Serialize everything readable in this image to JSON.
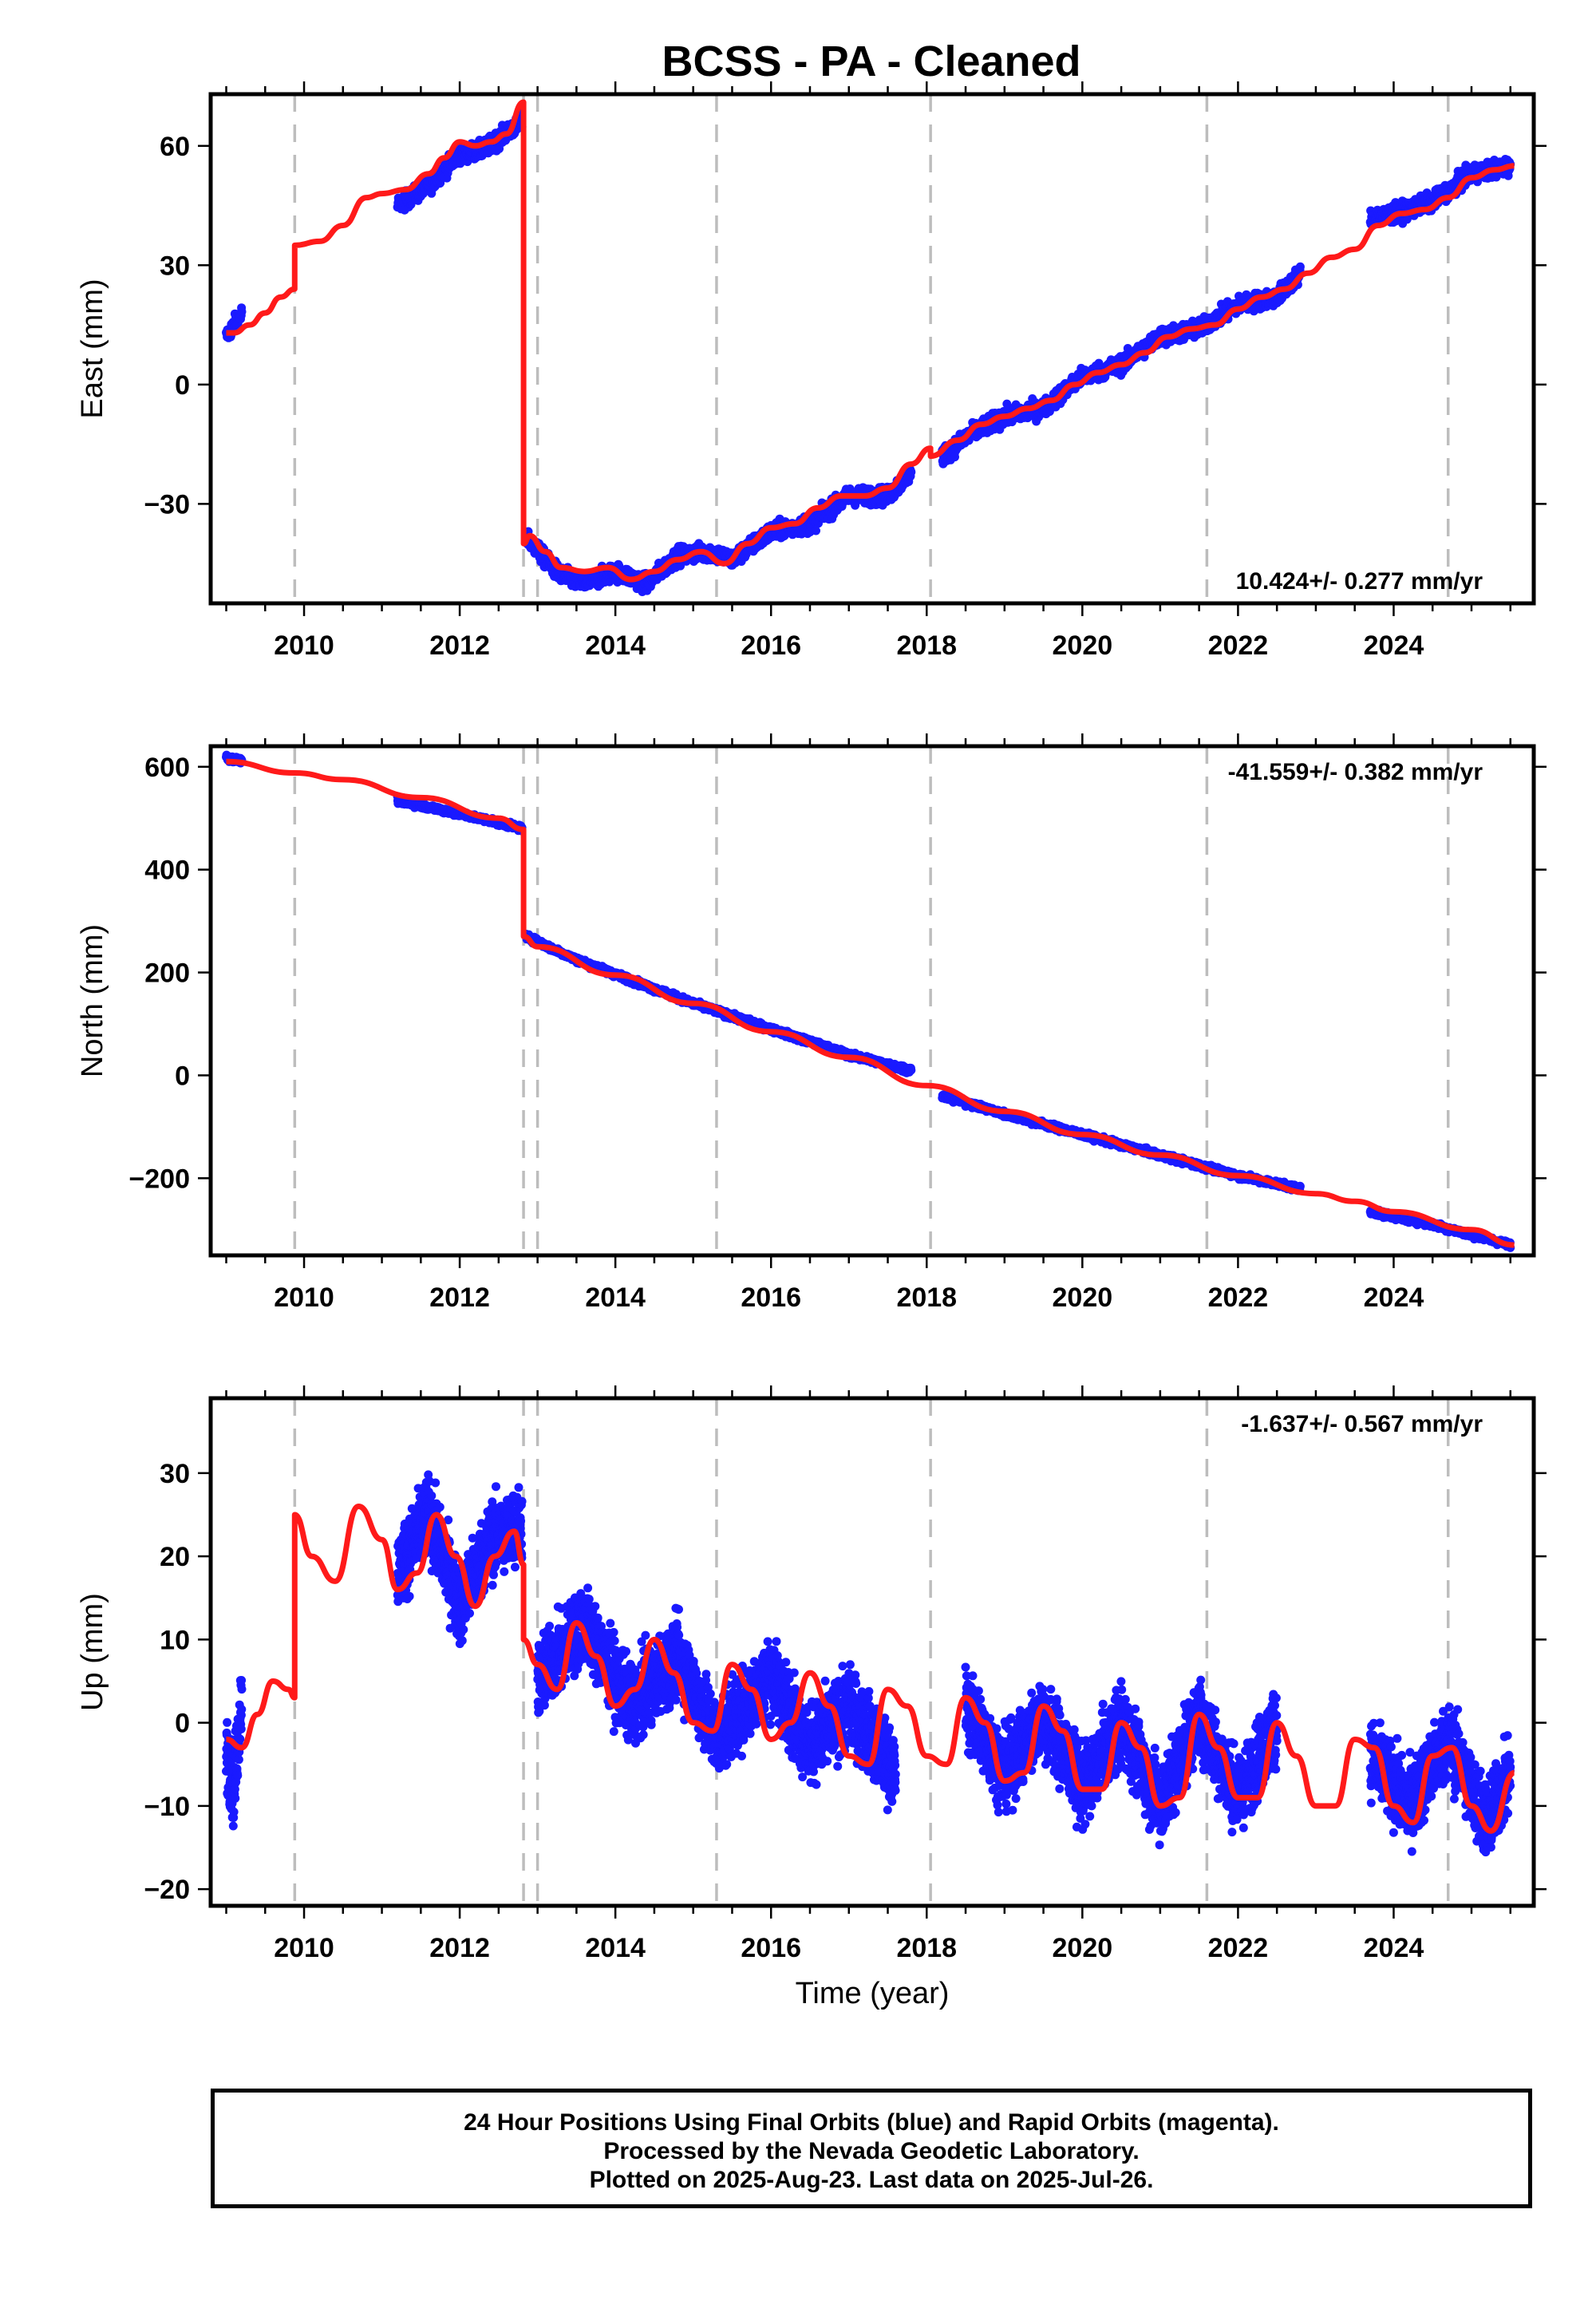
{
  "title": "BCSS  - PA - Cleaned",
  "footer": {
    "line1": "24 Hour Positions Using Final Orbits (blue) and Rapid Orbits (magenta).",
    "line2": "Processed by the Nevada Geodetic Laboratory.",
    "line3": "Plotted on 2025-Aug-23. Last data on 2025-Jul-26."
  },
  "colors": {
    "data_points": "#1a1aff",
    "model_line": "#ff1a1a",
    "event_lines": "#bdbdbd"
  },
  "chart_data": [
    {
      "type": "scatter",
      "ylabel": "East (mm)",
      "xlabel": "",
      "rate_label": "10.424+/- 0.277 mm/yr",
      "xlim": [
        2008.8,
        2025.8
      ],
      "ylim": [
        -55,
        73
      ],
      "xticks": [
        "2010",
        "2012",
        "2014",
        "2016",
        "2018",
        "2020",
        "2022",
        "2024"
      ],
      "yticks": [
        "60",
        "30",
        "0",
        "−30"
      ],
      "event_lines": [
        2009.88,
        2012.82,
        2013.0,
        2015.3,
        2018.05,
        2021.6,
        2024.7
      ],
      "series": [
        {
          "style": "points",
          "segments": [
            {
              "x": [
                2009.0,
                2009.1,
                2009.2
              ],
              "y": [
                12,
                15,
                18
              ]
            },
            {
              "x": [
                2011.2,
                2011.6,
                2012.0,
                2012.3,
                2012.8
              ],
              "y": [
                45,
                50,
                58,
                59,
                66
              ]
            },
            {
              "x": [
                2012.85,
                2013.1,
                2013.3,
                2013.6,
                2014.0,
                2014.4,
                2014.8,
                2015.2,
                2015.5,
                2016.0,
                2016.5,
                2017.0,
                2017.5,
                2017.8
              ],
              "y": [
                -38,
                -44,
                -48,
                -50,
                -47,
                -50,
                -43,
                -42,
                -44,
                -37,
                -35,
                -28,
                -28,
                -22
              ]
            },
            {
              "x": [
                2018.2,
                2018.6,
                2019.0,
                2019.5,
                2020.0,
                2020.5,
                2021.0,
                2021.5,
                2022.0,
                2022.5,
                2022.8
              ],
              "y": [
                -18,
                -12,
                -8,
                -6,
                2,
                5,
                12,
                14,
                20,
                22,
                28
              ]
            },
            {
              "x": [
                2023.7,
                2024.0,
                2024.5,
                2025.0,
                2025.5
              ],
              "y": [
                42,
                43,
                46,
                53,
                55
              ]
            }
          ]
        },
        {
          "style": "line",
          "x": [
            2009.0,
            2009.1,
            2009.3,
            2009.5,
            2009.7,
            2009.88,
            2009.88,
            2010.2,
            2010.5,
            2010.8,
            2011.0,
            2011.3,
            2011.6,
            2011.8,
            2012.0,
            2012.2,
            2012.4,
            2012.6,
            2012.82,
            2012.82,
            2012.9,
            2013.1,
            2013.3,
            2013.6,
            2013.9,
            2014.2,
            2014.5,
            2014.8,
            2015.1,
            2015.4,
            2015.7,
            2016.0,
            2016.3,
            2016.6,
            2016.9,
            2017.2,
            2017.5,
            2017.8,
            2018.05,
            2018.05,
            2018.4,
            2018.7,
            2019.0,
            2019.3,
            2019.6,
            2019.9,
            2020.2,
            2020.5,
            2020.8,
            2021.1,
            2021.4,
            2021.7,
            2022.0,
            2022.3,
            2022.6,
            2022.9,
            2023.2,
            2023.5,
            2023.8,
            2024.1,
            2024.4,
            2024.7,
            2025.0,
            2025.3,
            2025.55
          ],
          "y": [
            13,
            13,
            15,
            18,
            22,
            24,
            35,
            36,
            40,
            47,
            48,
            49,
            53,
            57,
            61,
            60,
            61,
            63,
            71,
            -40,
            -38,
            -42,
            -46,
            -47,
            -46,
            -49,
            -47,
            -44,
            -42,
            -45,
            -40,
            -36,
            -35,
            -31,
            -28,
            -28,
            -26,
            -20,
            -16,
            -18,
            -14,
            -10,
            -8,
            -6,
            -4,
            0,
            3,
            5,
            8,
            12,
            14,
            15,
            19,
            22,
            24,
            28,
            32,
            34,
            40,
            43,
            44,
            47,
            52,
            54,
            55
          ]
        }
      ]
    },
    {
      "type": "scatter",
      "ylabel": "North (mm)",
      "xlabel": "",
      "rate_label": "-41.559+/- 0.382 mm/yr",
      "xlim": [
        2008.8,
        2025.8
      ],
      "ylim": [
        -350,
        640
      ],
      "xticks": [
        "2010",
        "2012",
        "2014",
        "2016",
        "2018",
        "2020",
        "2022",
        "2024"
      ],
      "yticks": [
        "600",
        "400",
        "200",
        "0",
        "−200"
      ],
      "event_lines": [
        2009.88,
        2012.82,
        2013.0,
        2015.3,
        2018.05,
        2021.6,
        2024.7
      ],
      "series": [
        {
          "style": "points",
          "segments": [
            {
              "x": [
                2009.0,
                2009.1,
                2009.2
              ],
              "y": [
                618,
                614,
                612
              ]
            },
            {
              "x": [
                2011.2,
                2011.8,
                2012.4,
                2012.8
              ],
              "y": [
                535,
                515,
                495,
                480
              ]
            },
            {
              "x": [
                2012.85,
                2013.5,
                2014.2,
                2015.0,
                2016.0,
                2017.0,
                2017.8
              ],
              "y": [
                270,
                225,
                185,
                140,
                90,
                40,
                10
              ]
            },
            {
              "x": [
                2018.2,
                2019.0,
                2020.0,
                2021.0,
                2022.0,
                2022.8
              ],
              "y": [
                -40,
                -75,
                -115,
                -155,
                -195,
                -220
              ]
            },
            {
              "x": [
                2023.7,
                2024.5,
                2025.5
              ],
              "y": [
                -265,
                -290,
                -330
              ]
            }
          ]
        },
        {
          "style": "line",
          "x": [
            2009.0,
            2009.88,
            2010.5,
            2011.5,
            2012.5,
            2012.82,
            2012.82,
            2013.0,
            2014.0,
            2015.0,
            2016.0,
            2017.0,
            2018.0,
            2019.0,
            2020.0,
            2021.0,
            2022.0,
            2023.0,
            2023.5,
            2024.0,
            2025.0,
            2025.55
          ],
          "y": [
            610,
            588,
            575,
            540,
            500,
            478,
            270,
            250,
            195,
            140,
            85,
            35,
            -20,
            -70,
            -115,
            -155,
            -195,
            -230,
            -245,
            -265,
            -300,
            -330
          ]
        }
      ]
    },
    {
      "type": "scatter",
      "ylabel": "Up (mm)",
      "xlabel": "Time (year)",
      "rate_label": "-1.637+/- 0.567 mm/yr",
      "xlim": [
        2008.8,
        2025.8
      ],
      "ylim": [
        -22,
        39
      ],
      "xticks": [
        "2010",
        "2012",
        "2014",
        "2016",
        "2018",
        "2020",
        "2022",
        "2024"
      ],
      "yticks": [
        "30",
        "20",
        "10",
        "0",
        "−10",
        "−20"
      ],
      "event_lines": [
        2009.88,
        2012.82,
        2013.0,
        2015.3,
        2018.05,
        2021.6,
        2024.7
      ],
      "series": [
        {
          "style": "points",
          "segments": [
            {
              "x": [
                2009.0,
                2009.1,
                2009.2
              ],
              "y": [
                -3,
                -8,
                4
              ]
            },
            {
              "x": [
                2011.2,
                2011.6,
                2012.0,
                2012.4,
                2012.8
              ],
              "y": [
                18,
                25,
                14,
                22,
                24
              ]
            },
            {
              "x": [
                2013.0,
                2013.6,
                2014.2,
                2014.8,
                2015.3,
                2016.0,
                2016.5,
                2017.0,
                2017.6
              ],
              "y": [
                5,
                12,
                2,
                8,
                -2,
                6,
                -3,
                2,
                -6
              ]
            },
            {
              "x": [
                2018.5,
                2019.0,
                2019.5,
                2020.0,
                2020.5,
                2021.0,
                2021.5,
                2022.0,
                2022.5
              ],
              "y": [
                2,
                -6,
                1,
                -8,
                0,
                -10,
                1,
                -9,
                0
              ]
            },
            {
              "x": [
                2023.7,
                2024.2,
                2024.7,
                2025.2,
                2025.5
              ],
              "y": [
                -4,
                -10,
                -2,
                -12,
                -6
              ]
            }
          ]
        },
        {
          "style": "line",
          "x": [
            2009.0,
            2009.2,
            2009.4,
            2009.6,
            2009.8,
            2009.88,
            2009.88,
            2010.1,
            2010.4,
            2010.7,
            2011.0,
            2011.2,
            2011.45,
            2011.7,
            2011.95,
            2012.2,
            2012.45,
            2012.7,
            2012.82,
            2012.82,
            2013.0,
            2013.25,
            2013.5,
            2013.75,
            2014.0,
            2014.25,
            2014.5,
            2014.75,
            2015.0,
            2015.25,
            2015.5,
            2015.75,
            2016.0,
            2016.25,
            2016.5,
            2016.75,
            2017.0,
            2017.25,
            2017.5,
            2017.75,
            2018.0,
            2018.25,
            2018.5,
            2018.75,
            2019.0,
            2019.25,
            2019.5,
            2019.75,
            2020.0,
            2020.25,
            2020.5,
            2020.75,
            2021.0,
            2021.25,
            2021.5,
            2021.75,
            2022.0,
            2022.25,
            2022.5,
            2022.75,
            2023.0,
            2023.25,
            2023.5,
            2023.75,
            2024.0,
            2024.25,
            2024.5,
            2024.75,
            2025.0,
            2025.25,
            2025.55
          ],
          "y": [
            -2,
            -3,
            1,
            5,
            4,
            3,
            25,
            20,
            17,
            26,
            22,
            16,
            18,
            25,
            20,
            14,
            20,
            23,
            19,
            10,
            7,
            4,
            12,
            8,
            2,
            4,
            10,
            6,
            0,
            -1,
            7,
            4,
            -2,
            0,
            6,
            2,
            -4,
            -5,
            4,
            2,
            -4,
            -5,
            3,
            0,
            -7,
            -6,
            2,
            -1,
            -8,
            -8,
            0,
            -3,
            -10,
            -9,
            1,
            -3,
            -9,
            -9,
            0,
            -4,
            -10,
            -10,
            -2,
            -3,
            -10,
            -12,
            -4,
            -3,
            -10,
            -13,
            -6
          ]
        }
      ]
    }
  ]
}
